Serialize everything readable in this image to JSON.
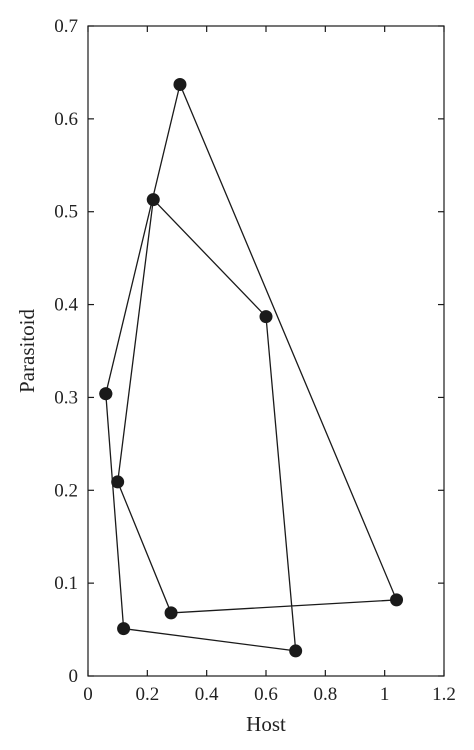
{
  "chart_data": {
    "type": "line",
    "xlabel": "Host",
    "ylabel": "Parasitoid",
    "xlim": [
      0,
      1.2
    ],
    "ylim": [
      0,
      0.7
    ],
    "x_ticks": [
      "0",
      "0.2",
      "0.4",
      "0.6",
      "0.8",
      "1",
      "1.2"
    ],
    "y_ticks": [
      "0",
      "0.1",
      "0.2",
      "0.3",
      "0.4",
      "0.5",
      "0.6",
      "0.7"
    ],
    "grid": false,
    "series": [
      {
        "color": "#1a1a1a",
        "marker": "filled-circle",
        "points": [
          {
            "x": 0.06,
            "y": 0.304
          },
          {
            "x": 0.12,
            "y": 0.051
          },
          {
            "x": 0.7,
            "y": 0.027
          },
          {
            "x": 0.6,
            "y": 0.387
          },
          {
            "x": 0.22,
            "y": 0.513
          },
          {
            "x": 0.1,
            "y": 0.209
          },
          {
            "x": 0.28,
            "y": 0.068
          },
          {
            "x": 1.04,
            "y": 0.082
          },
          {
            "x": 0.31,
            "y": 0.637
          },
          {
            "x": 0.06,
            "y": 0.304
          }
        ]
      }
    ]
  }
}
